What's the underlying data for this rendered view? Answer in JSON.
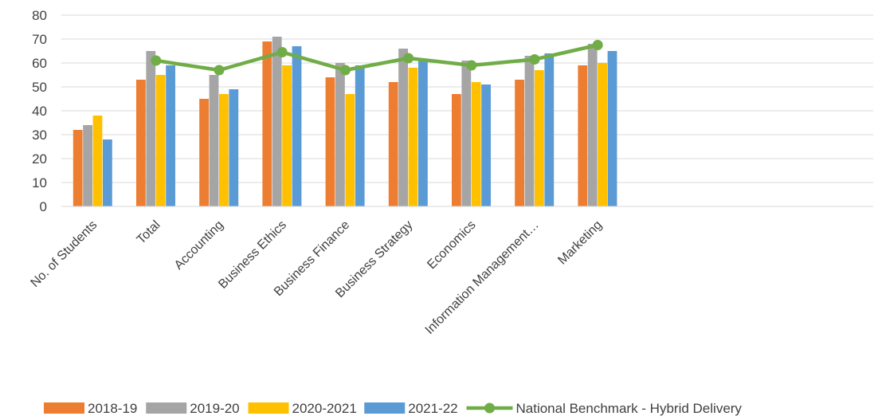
{
  "chart_data": {
    "type": "bar",
    "title": "",
    "xlabel": "",
    "ylabel": "",
    "ylim": [
      0,
      80
    ],
    "yticks": [
      0,
      10,
      20,
      30,
      40,
      50,
      60,
      70,
      80
    ],
    "grid": true,
    "legend_position": "bottom",
    "categories": [
      "No. of Students",
      "Total",
      "Accounting",
      "Business Ethics",
      "Business Finance",
      "Business Strategy",
      "Economics",
      "Information Management…",
      "Marketing"
    ],
    "series": [
      {
        "name": "2018-19",
        "type": "bar",
        "color": "#ED7D31",
        "values": [
          32,
          53,
          45,
          69,
          54,
          52,
          47,
          53,
          59
        ]
      },
      {
        "name": "2019-20",
        "type": "bar",
        "color": "#A5A5A5",
        "values": [
          34,
          65,
          55,
          71,
          60,
          66,
          61,
          63,
          68
        ]
      },
      {
        "name": "2020-2021",
        "type": "bar",
        "color": "#FFC000",
        "values": [
          38,
          55,
          47,
          59,
          47,
          58,
          52,
          57,
          60
        ]
      },
      {
        "name": "2021-22",
        "type": "bar",
        "color": "#5B9BD5",
        "values": [
          28,
          59,
          49,
          67,
          59,
          61,
          51,
          64,
          65
        ]
      },
      {
        "name": "National Benchmark - Hybrid Delivery",
        "type": "line",
        "color": "#70AD47",
        "values": [
          null,
          61,
          57,
          64.5,
          57,
          62,
          59,
          61.5,
          67.5
        ]
      }
    ]
  }
}
